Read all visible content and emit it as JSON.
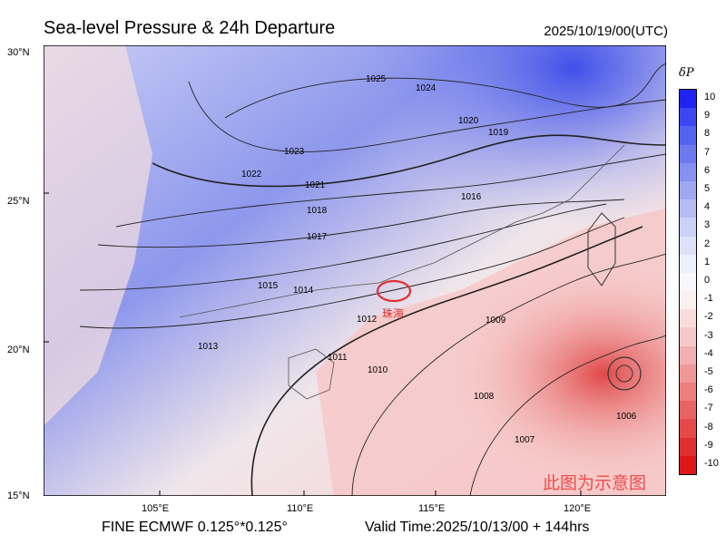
{
  "header": {
    "title": "Sea-level Pressure & 24h Departure",
    "valid_utc": "2025/10/19/00(UTC)"
  },
  "footer": {
    "model": "FINE ECMWF 0.125°*0.125°",
    "valid_time": "Valid Time:2025/10/13/00 + 144hrs"
  },
  "map": {
    "lat_labels": [
      "30°N",
      "25°N",
      "20°N",
      "15°N"
    ],
    "lon_labels": [
      "105°E",
      "110°E",
      "115°E",
      "120°E"
    ],
    "city_label": "珠海",
    "watermark": "此图为示意图",
    "isobar_labels": [
      "1025",
      "1024",
      "1023",
      "1022",
      "1021",
      "1020",
      "1019",
      "1018",
      "1017",
      "1016",
      "1015",
      "1014",
      "1013",
      "1012",
      "1011",
      "1010",
      "1009",
      "1008",
      "1007",
      "1006"
    ],
    "colors": {
      "positive": "#1a2cf0",
      "neutral": "#ffffff",
      "negative": "#f51414",
      "marker": "#e03030"
    }
  },
  "colorbar": {
    "title": "δP",
    "ticks": [
      "10",
      "9",
      "8",
      "7",
      "6",
      "5",
      "4",
      "3",
      "2",
      "1",
      "0",
      "-1",
      "-2",
      "-3",
      "-4",
      "-5",
      "-6",
      "-7",
      "-8",
      "-9",
      "-10"
    ],
    "colors": [
      "#1f22f2",
      "#3b47f0",
      "#5563ef",
      "#6d7aee",
      "#8691f0",
      "#9ea7f2",
      "#b5bdf4",
      "#cbd1f7",
      "#dde1fa",
      "#eef0fc",
      "#f7f7fd",
      "#fbf0f0",
      "#f8dcdc",
      "#f6c8c8",
      "#f3b0b0",
      "#f09898",
      "#ec8080",
      "#e86464",
      "#e44a4a",
      "#e02f2f",
      "#dd1818"
    ]
  }
}
